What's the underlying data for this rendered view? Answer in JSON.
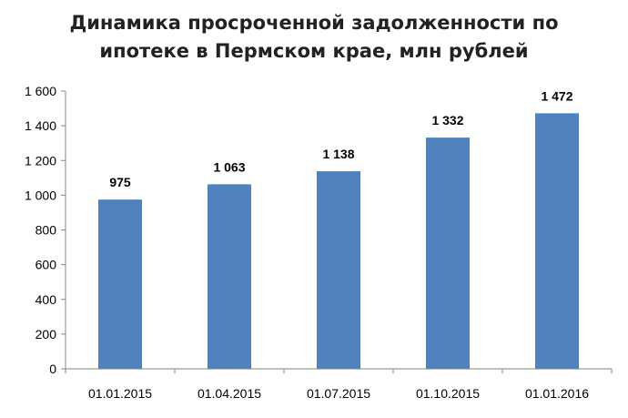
{
  "chart_data": {
    "type": "bar",
    "title_lines": [
      "Динамика просроченной задолженности по",
      "ипотеке в Пермском крае, млн рублей"
    ],
    "categories": [
      "01.01.2015",
      "01.04.2015",
      "01.07.2015",
      "01.10.2015",
      "01.01.2016"
    ],
    "values": [
      975,
      1063,
      1138,
      1332,
      1472
    ],
    "value_labels": [
      "975",
      "1 063",
      "1 138",
      "1 332",
      "1 472"
    ],
    "ylim": [
      0,
      1600
    ],
    "yticks": [
      0,
      200,
      400,
      600,
      800,
      1000,
      1200,
      1400,
      1600
    ],
    "ytick_labels": [
      "0",
      "200",
      "400",
      "600",
      "800",
      "1 000",
      "1 200",
      "1 400",
      "1 600"
    ],
    "xlabel": "",
    "ylabel": "",
    "grid": false,
    "legend": "none",
    "bar_color": "#4F81BD"
  }
}
